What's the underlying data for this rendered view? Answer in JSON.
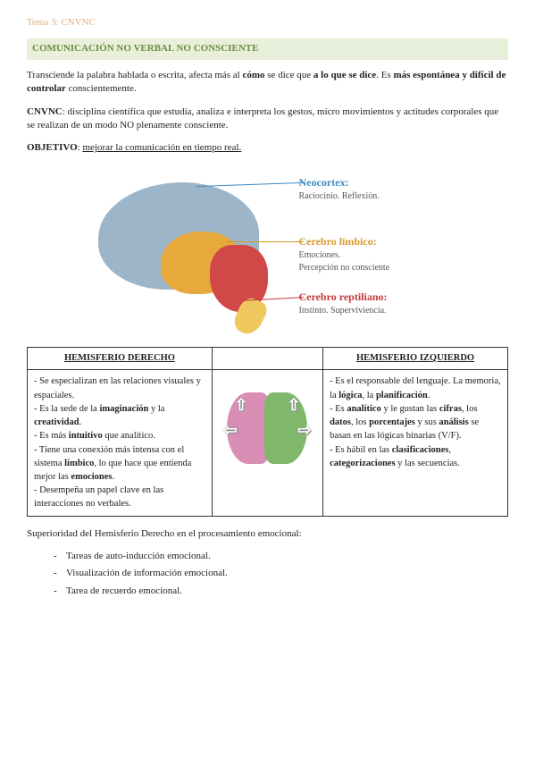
{
  "topic": "Tema 3: CNVNC",
  "header": "COMUNICACIÓN NO VERBAL NO CONSCIENTE",
  "p1": {
    "t1": "Transciende la palabra hablada o escrita, afecta más al ",
    "b1": "cómo",
    "t2": " se dice que ",
    "b2": "a lo que se dice",
    "t3": ". Es ",
    "b3": "más espontánea y difícil de controlar",
    "t4": " conscientemente."
  },
  "p2": {
    "b1": "CNVNC",
    "t1": ": disciplina científica que estudia, analiza e interpreta los gestos, micro movimientos y actitudes corporales que se realizan de un modo NO plenamente consciente."
  },
  "p3": {
    "b1": "OBJETIVO",
    "t1": ": ",
    "u1": "mejorar la comunicación en tiempo real."
  },
  "brain": {
    "c1_title": "Neocortex:",
    "c1_desc": "Raciocinio. Reflexión.",
    "c2_title": "Cerebro límbico:",
    "c2_desc1": "Emociones.",
    "c2_desc2": "Percepción no consciente",
    "c3_title": "Cerebro reptiliano:",
    "c3_desc": "Instinto. Superviviencia.",
    "colors": {
      "neo": "#9db5c8",
      "limbic": "#e8a93c",
      "rept": "#d04848"
    }
  },
  "table": {
    "h_right": "HEMISFERIO DERECHO",
    "h_left": "HEMISFERIO IZQUIERDO",
    "right": {
      "l1a": "- Se especializan en las relaciones visuales y espaciales.",
      "l2a": "- Es la sede de la ",
      "l2b": "imaginación",
      "l2c": " y la ",
      "l2d": "creatividad",
      "l2e": ".",
      "l3a": "- Es más ",
      "l3b": "intuitivo",
      "l3c": " que analítico.",
      "l4a": "- Tiene una conexión más intensa con el sistema ",
      "l4b": "límbico",
      "l4c": ", lo que hace que entienda mejor las ",
      "l4d": "emociones",
      "l4e": ".",
      "l5a": "- Desempeña un papel clave en las interacciones no verbales."
    },
    "left": {
      "l1a": "- Es el responsable del lenguaje. La memoria, la ",
      "l1b": "lógica",
      "l1c": ", la ",
      "l1d": "planificación",
      "l1e": ".",
      "l2a": "- Es ",
      "l2b": "analítico",
      "l2c": " y le gustan las ",
      "l2d": "cifras",
      "l2e": ", los ",
      "l2f": "datos",
      "l2g": ", los ",
      "l2h": "porcentajes",
      "l2i": " y sus ",
      "l2j": "análisis",
      "l2k": " se basan en las lógicas binarias (V/F).",
      "l3a": "- Es hábil en las ",
      "l3b": "clasificaciones",
      "l3c": ", ",
      "l3d": "categorizaciones",
      "l3e": " y las secuencias."
    }
  },
  "superior": "Superioridad del Hemisferio Derecho en el procesamiento emocional:",
  "bullets": {
    "b1": "Tareas de auto-inducción emocional.",
    "b2": "Visualización de información emocional.",
    "b3": "Tarea de recuerdo emocional."
  }
}
